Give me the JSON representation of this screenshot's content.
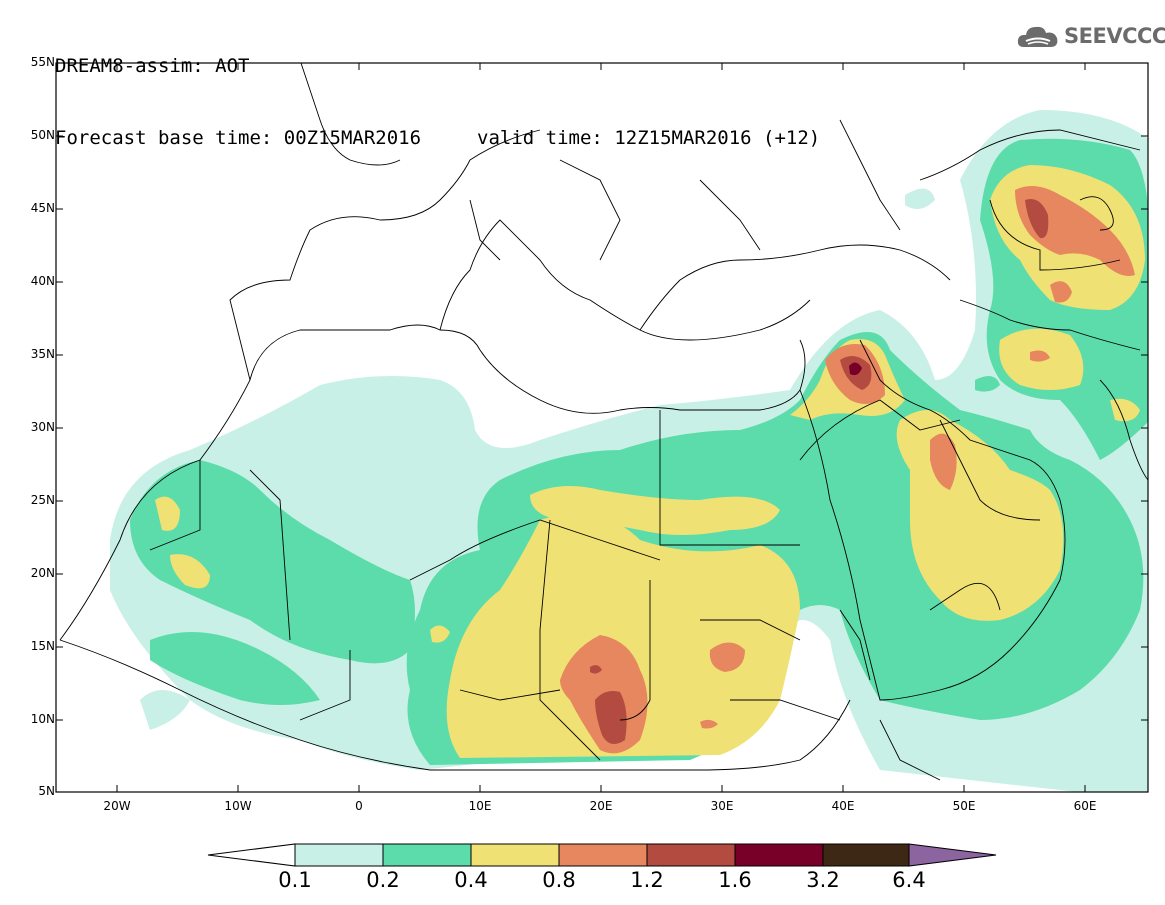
{
  "title": {
    "line1": "DREAM8-assim: AOT",
    "base_time": "Forecast base time: 00Z15MAR2016",
    "valid_time": "valid time: 12Z15MAR2016 (+12)"
  },
  "logo": {
    "text": "SEEVCCC",
    "icon": "cloud-icon"
  },
  "map": {
    "lon_range": [
      -25,
      65
    ],
    "lat_range": [
      5,
      55
    ],
    "lat_labels": [
      "55N",
      "50N",
      "45N",
      "40N",
      "35N",
      "30N",
      "25N",
      "20N",
      "15N",
      "10N",
      "5N"
    ],
    "lon_labels": [
      "20W",
      "10W",
      "0",
      "10E",
      "20E",
      "30E",
      "40E",
      "50E",
      "60E"
    ]
  },
  "colorbar": {
    "labels": [
      "0.1",
      "0.2",
      "0.4",
      "0.8",
      "1.2",
      "1.6",
      "3.2",
      "6.4"
    ],
    "colors": [
      "#ffffff",
      "#c8f0e6",
      "#5cdcaa",
      "#f0e174",
      "#e6875f",
      "#b44b41",
      "#780028",
      "#3c2814",
      "#8c64a0"
    ]
  }
}
